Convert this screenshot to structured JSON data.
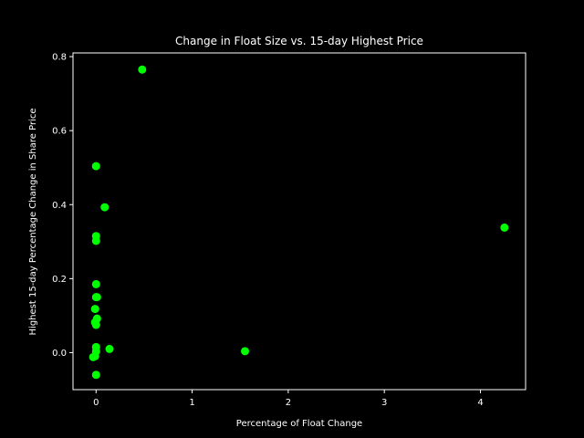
{
  "chart_data": {
    "type": "scatter",
    "title": "Change in Float Size vs. 15-day Highest Price",
    "xlabel": "Percentage of Float Change",
    "ylabel": "Highest 15-day Percentage Change in Share Price",
    "xlim": [
      -0.24,
      4.47
    ],
    "ylim": [
      -0.1,
      0.81
    ],
    "xticks": [
      0,
      1,
      2,
      3,
      4
    ],
    "yticks": [
      0.0,
      0.2,
      0.4,
      0.6,
      0.8
    ],
    "ytick_labels": [
      "0.0",
      "0.2",
      "0.4",
      "0.6",
      "0.8"
    ],
    "grid": false,
    "point_color": "#00ff00",
    "background": "#000000",
    "foreground": "#ffffff",
    "points": [
      {
        "x": 0.48,
        "y": 0.765
      },
      {
        "x": 0.0,
        "y": 0.504
      },
      {
        "x": 0.09,
        "y": 0.393
      },
      {
        "x": 0.0,
        "y": 0.315
      },
      {
        "x": 0.0,
        "y": 0.302
      },
      {
        "x": 0.0,
        "y": 0.185
      },
      {
        "x": 0.0,
        "y": 0.15
      },
      {
        "x": 0.01,
        "y": 0.15
      },
      {
        "x": -0.01,
        "y": 0.118
      },
      {
        "x": 0.01,
        "y": 0.092
      },
      {
        "x": -0.01,
        "y": 0.082
      },
      {
        "x": 0.0,
        "y": 0.075
      },
      {
        "x": 0.0,
        "y": 0.015
      },
      {
        "x": 0.14,
        "y": 0.01
      },
      {
        "x": 0.0,
        "y": 0.003
      },
      {
        "x": -0.01,
        "y": -0.01
      },
      {
        "x": -0.03,
        "y": -0.012
      },
      {
        "x": 0.0,
        "y": -0.06
      },
      {
        "x": 1.55,
        "y": 0.004
      },
      {
        "x": 4.25,
        "y": 0.338
      }
    ]
  }
}
